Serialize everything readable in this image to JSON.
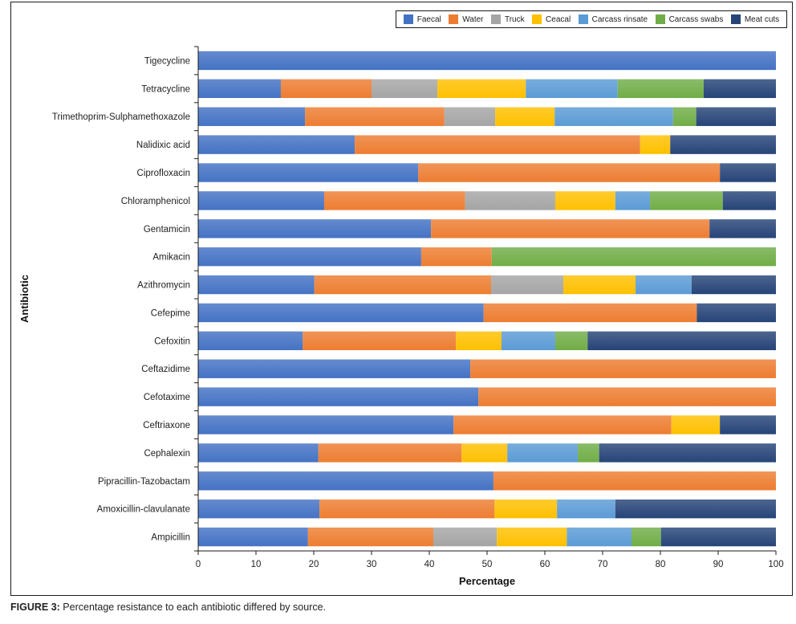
{
  "caption": {
    "label": "FIGURE 3:",
    "text": " Percentage resistance to each antibiotic differed by source."
  },
  "chart_data": {
    "type": "bar",
    "orientation": "horizontal",
    "stacked": true,
    "title": "",
    "xlabel": "Percentage",
    "ylabel": "Antibiotic",
    "xlim": [
      0,
      100
    ],
    "xticks": [
      0,
      10,
      20,
      30,
      40,
      50,
      60,
      70,
      80,
      90,
      100
    ],
    "grid": false,
    "legend_position": "top-right",
    "categories": [
      "Tigecycline",
      "Tetracycline",
      "Trimethoprim-Sulphamethoxazole",
      "Nalidixic acid",
      "Ciprofloxacin",
      "Chloramphenicol",
      "Gentamicin",
      "Amikacin",
      "Azithromycin",
      "Cefepime",
      "Cefoxitin",
      "Ceftazidime",
      "Cefotaxime",
      "Ceftriaxone",
      "Cephalexin",
      "Pipracillin-Tazobactam",
      "Amoxicillin-clavulanate",
      "Ampicillin"
    ],
    "series": [
      {
        "name": "Faecal",
        "color": "#4472c4",
        "values": [
          100,
          14.3,
          18.5,
          27.1,
          38.1,
          21.8,
          40.3,
          38.6,
          20.1,
          49.4,
          18.1,
          47.1,
          48.5,
          44.2,
          20.8,
          51.1,
          21.0,
          19.0
        ]
      },
      {
        "name": "Water",
        "color": "#ed7d31",
        "values": [
          0,
          15.7,
          24.1,
          49.4,
          52.2,
          24.4,
          48.2,
          12.2,
          30.6,
          36.9,
          26.5,
          52.9,
          51.5,
          37.7,
          24.8,
          48.9,
          30.3,
          21.7
        ]
      },
      {
        "name": "Truck",
        "color": "#a5a5a5",
        "values": [
          0,
          11.4,
          8.8,
          0,
          0,
          15.6,
          0,
          0,
          12.5,
          0,
          0,
          0,
          0,
          0,
          0,
          0,
          0,
          11.0
        ]
      },
      {
        "name": "Ceacal",
        "color": "#ffc000",
        "values": [
          0,
          15.3,
          10.3,
          5.2,
          0,
          10.4,
          0,
          0,
          12.5,
          0,
          7.9,
          0,
          0,
          8.4,
          7.9,
          0,
          10.8,
          12.1
        ]
      },
      {
        "name": "Carcass rinsate",
        "color": "#5b9bd5",
        "values": [
          0,
          15.9,
          20.5,
          0,
          0,
          6.0,
          0,
          0,
          9.7,
          0,
          9.3,
          0,
          0,
          0,
          12.2,
          0,
          10.1,
          11.2
        ]
      },
      {
        "name": "Carcass swabs",
        "color": "#70ad47",
        "values": [
          0,
          14.9,
          4.0,
          0,
          0,
          12.6,
          0,
          49.2,
          0,
          0,
          5.6,
          0,
          0,
          0,
          3.7,
          0,
          0,
          5.1
        ]
      },
      {
        "name": "Meat cuts",
        "color": "#264478",
        "values": [
          0,
          12.5,
          13.8,
          18.3,
          9.7,
          9.2,
          11.5,
          0,
          14.6,
          13.7,
          32.6,
          0,
          0,
          9.7,
          30.6,
          0,
          27.8,
          19.9
        ]
      }
    ]
  }
}
